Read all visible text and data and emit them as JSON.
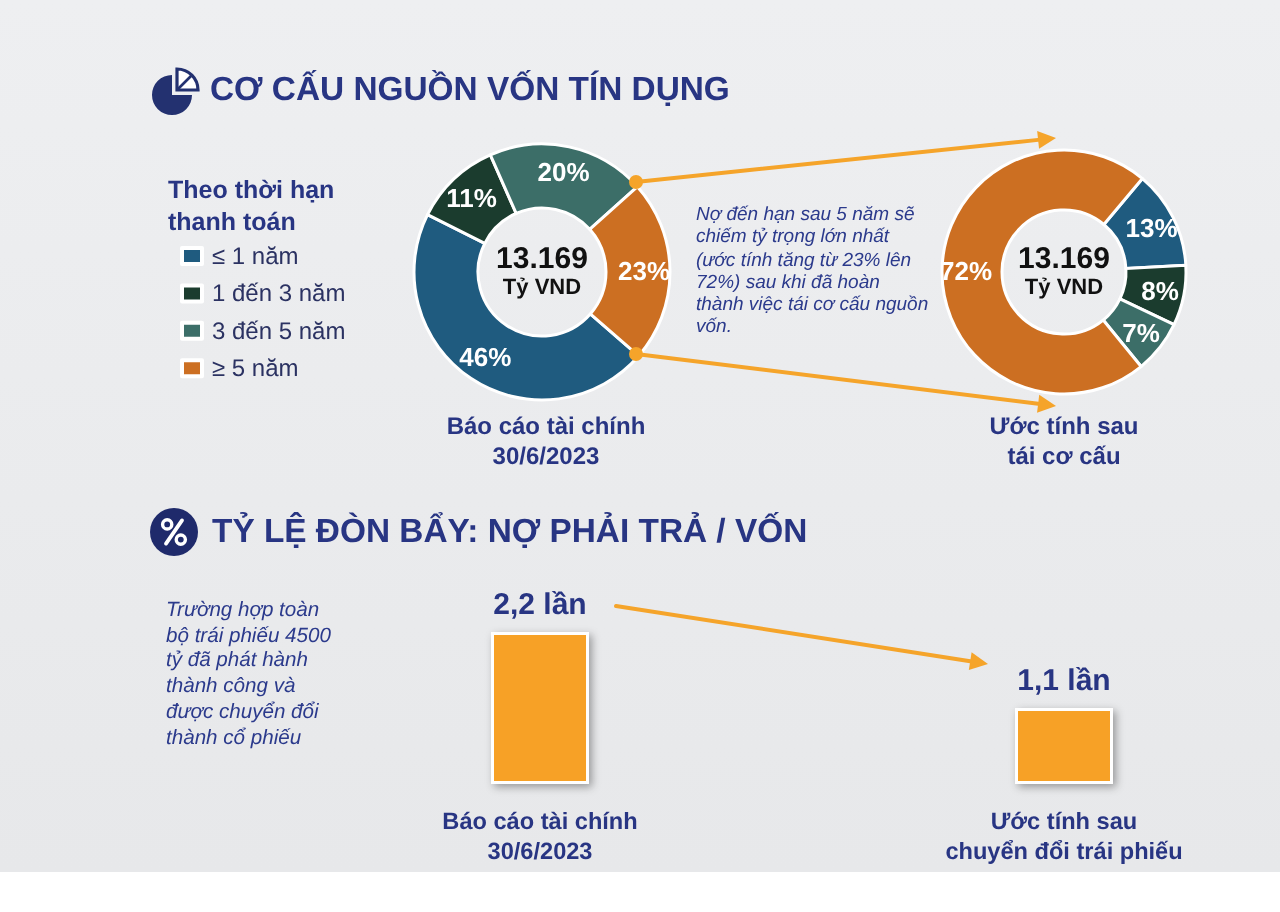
{
  "chart_data": [
    {
      "type": "donut",
      "title": "CƠ CẤU NGUỒN VỐN TÍN DỤNG",
      "legend_title": "Theo thời hạn\nthanh toán",
      "legend": "left",
      "categories": [
        "≤ 1 năm",
        "1 đến 3 năm",
        "3 đến 5 năm",
        "≥ 5 năm"
      ],
      "colors": [
        "#1f5b7f",
        "#1b3c2e",
        "#3c6e68",
        "#cc6f22"
      ],
      "series": [
        {
          "name": "Báo cáo tài chính\n30/6/2023",
          "values": [
            46,
            11,
            20,
            23
          ],
          "value_labels": [
            "46%",
            "11%",
            "20%",
            "23%"
          ]
        },
        {
          "name": "Ước tính sau\ntái cơ cấu",
          "values": [
            13,
            8,
            7,
            72
          ],
          "value_labels": [
            "13%",
            "8%",
            "7%",
            "72%"
          ]
        }
      ],
      "annotations": [
        "13.169\nTỷ VND",
        "13.169\nTỷ VND",
        "Nợ đến hạn sau 5 năm sẽ chiếm tỷ trọng lớn nhất (ước tính tăng từ 23% lên 72%) sau khi đã hoàn thành việc tái cơ cấu nguồn vốn."
      ]
    },
    {
      "type": "bar",
      "title": "TỶ LỆ ĐÒN BẨY: NỢ PHẢI TRẢ / VỐN",
      "categories": [
        "Báo cáo tài chính\n30/6/2023",
        "Ước tính sau\nchuyển đổi trái phiếu"
      ],
      "values": [
        2.2,
        1.1
      ],
      "color": "#f7a128",
      "value_labels": [
        "2,2 lần",
        "1,1 lần"
      ],
      "annotations": [
        "Trường hợp toàn bộ trái phiếu 4500 tỷ đã phát hành thành công và được chuyển đổi thành cổ phiếu"
      ]
    }
  ]
}
